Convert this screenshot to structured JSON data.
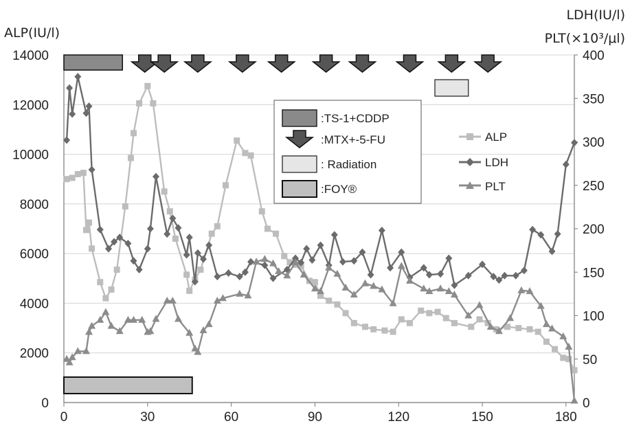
{
  "chart_data": {
    "type": "line",
    "title": "",
    "xlabel": "",
    "y_left_label": "ALP(IU/l)",
    "y_right_label_line1": "LDH(IU/l)",
    "y_right_label_line2": "PLT(×10³/μl)",
    "xlim": [
      0,
      183
    ],
    "ylim_left": [
      0,
      14000
    ],
    "ylim_right": [
      0,
      400
    ],
    "x_ticks": [
      0,
      30,
      60,
      90,
      120,
      150,
      180
    ],
    "y_left_ticks": [
      0,
      2000,
      4000,
      6000,
      8000,
      10000,
      12000,
      14000
    ],
    "y_right_ticks": [
      0,
      50,
      100,
      150,
      200,
      250,
      300,
      350,
      400
    ],
    "grid": "horizontal",
    "colors": {
      "ALP": "#bdbdbd",
      "LDH": "#6b6b6b",
      "PLT": "#8c8c8c"
    },
    "series": [
      {
        "name": "ALP",
        "axis": "left",
        "marker": "square",
        "points": [
          [
            1,
            9000
          ],
          [
            3,
            9050
          ],
          [
            5,
            9200
          ],
          [
            7,
            9250
          ],
          [
            8,
            6950
          ],
          [
            9,
            7250
          ],
          [
            10,
            6200
          ],
          [
            13,
            4850
          ],
          [
            15,
            4200
          ],
          [
            17,
            4550
          ],
          [
            19,
            5350
          ],
          [
            22,
            7900
          ],
          [
            24,
            9850
          ],
          [
            25,
            10850
          ],
          [
            27,
            12050
          ],
          [
            30,
            12750
          ],
          [
            32,
            12050
          ],
          [
            36,
            8500
          ],
          [
            38,
            7700
          ],
          [
            40,
            6600
          ],
          [
            44,
            5150
          ],
          [
            45,
            4500
          ],
          [
            47,
            4950
          ],
          [
            49,
            5350
          ],
          [
            53,
            6800
          ],
          [
            55,
            7100
          ],
          [
            58,
            8750
          ],
          [
            62,
            10550
          ],
          [
            65,
            10050
          ],
          [
            67,
            9950
          ],
          [
            71,
            7700
          ],
          [
            73,
            7000
          ],
          [
            76,
            6800
          ],
          [
            79,
            5900
          ],
          [
            81,
            5650
          ],
          [
            83,
            5550
          ],
          [
            85,
            5500
          ],
          [
            88,
            4900
          ],
          [
            90,
            4850
          ],
          [
            92,
            4300
          ],
          [
            95,
            4100
          ],
          [
            98,
            3950
          ],
          [
            101,
            3600
          ],
          [
            104,
            3200
          ],
          [
            108,
            3050
          ],
          [
            111,
            2950
          ],
          [
            115,
            2900
          ],
          [
            118,
            2850
          ],
          [
            121,
            3350
          ],
          [
            124,
            3200
          ],
          [
            128,
            3700
          ],
          [
            131,
            3600
          ],
          [
            134,
            3650
          ],
          [
            137,
            3400
          ],
          [
            140,
            3200
          ],
          [
            146,
            3050
          ],
          [
            149,
            3350
          ],
          [
            152,
            3200
          ],
          [
            155,
            2950
          ],
          [
            159,
            3050
          ],
          [
            163,
            3000
          ],
          [
            167,
            2950
          ],
          [
            170,
            2850
          ],
          [
            173,
            2450
          ],
          [
            176,
            2150
          ],
          [
            179,
            1800
          ],
          [
            181,
            1750
          ],
          [
            183,
            1300
          ]
        ]
      },
      {
        "name": "LDH",
        "axis": "right",
        "marker": "diamond",
        "points": [
          [
            1,
            302
          ],
          [
            2,
            362
          ],
          [
            3,
            332
          ],
          [
            5,
            375
          ],
          [
            8,
            333
          ],
          [
            9,
            341
          ],
          [
            10,
            268
          ],
          [
            13,
            199
          ],
          [
            16,
            177
          ],
          [
            18,
            185
          ],
          [
            20,
            190
          ],
          [
            23,
            183
          ],
          [
            25,
            163
          ],
          [
            27,
            153
          ],
          [
            30,
            177
          ],
          [
            31,
            200
          ],
          [
            33,
            260
          ],
          [
            37,
            194
          ],
          [
            39,
            212
          ],
          [
            41,
            201
          ],
          [
            44,
            170
          ],
          [
            45,
            190
          ],
          [
            47,
            139
          ],
          [
            48,
            172
          ],
          [
            50,
            165
          ],
          [
            52,
            181
          ],
          [
            55,
            145
          ],
          [
            59,
            149
          ],
          [
            63,
            145
          ],
          [
            65,
            150
          ],
          [
            67,
            162
          ],
          [
            72,
            158
          ],
          [
            75,
            143
          ],
          [
            80,
            153
          ],
          [
            83,
            166
          ],
          [
            85,
            161
          ],
          [
            87,
            177
          ],
          [
            89,
            164
          ],
          [
            92,
            181
          ],
          [
            95,
            158
          ],
          [
            97,
            193
          ],
          [
            100,
            162
          ],
          [
            104,
            163
          ],
          [
            107,
            173
          ],
          [
            110,
            147
          ],
          [
            114,
            198
          ],
          [
            117,
            155
          ],
          [
            121,
            173
          ],
          [
            124,
            144
          ],
          [
            129,
            155
          ],
          [
            131,
            147
          ],
          [
            135,
            148
          ],
          [
            138,
            166
          ],
          [
            140,
            135
          ],
          [
            145,
            146
          ],
          [
            150,
            159
          ],
          [
            154,
            145
          ],
          [
            156,
            141
          ],
          [
            158,
            146
          ],
          [
            162,
            146
          ],
          [
            165,
            152
          ],
          [
            168,
            199
          ],
          [
            171,
            193
          ],
          [
            175,
            174
          ],
          [
            177,
            194
          ],
          [
            180,
            274
          ],
          [
            183,
            299
          ]
        ]
      },
      {
        "name": "PLT",
        "axis": "right",
        "marker": "triangle",
        "points": [
          [
            1,
            50
          ],
          [
            2,
            46
          ],
          [
            3,
            52
          ],
          [
            5,
            59
          ],
          [
            8,
            59
          ],
          [
            9,
            81
          ],
          [
            10,
            88
          ],
          [
            13,
            95
          ],
          [
            15,
            104
          ],
          [
            17,
            88
          ],
          [
            20,
            82
          ],
          [
            23,
            95
          ],
          [
            25,
            95
          ],
          [
            28,
            95
          ],
          [
            30,
            81
          ],
          [
            31,
            82
          ],
          [
            33,
            96
          ],
          [
            37,
            117
          ],
          [
            39,
            117
          ],
          [
            41,
            96
          ],
          [
            45,
            80
          ],
          [
            47,
            62
          ],
          [
            48,
            58
          ],
          [
            50,
            83
          ],
          [
            52,
            90
          ],
          [
            55,
            117
          ],
          [
            57,
            120
          ],
          [
            63,
            125
          ],
          [
            66,
            123
          ],
          [
            69,
            162
          ],
          [
            72,
            165
          ],
          [
            75,
            160
          ],
          [
            77,
            151
          ],
          [
            80,
            146
          ],
          [
            83,
            161
          ],
          [
            86,
            147
          ],
          [
            90,
            131
          ],
          [
            92,
            128
          ],
          [
            95,
            155
          ],
          [
            98,
            148
          ],
          [
            101,
            132
          ],
          [
            104,
            124
          ],
          [
            108,
            137
          ],
          [
            111,
            134
          ],
          [
            114,
            130
          ],
          [
            118,
            114
          ],
          [
            121,
            157
          ],
          [
            124,
            140
          ],
          [
            129,
            131
          ],
          [
            131,
            128
          ],
          [
            135,
            131
          ],
          [
            138,
            128
          ],
          [
            140,
            124
          ],
          [
            145,
            100
          ],
          [
            149,
            112
          ],
          [
            153,
            87
          ],
          [
            156,
            82
          ],
          [
            160,
            97
          ],
          [
            164,
            129
          ],
          [
            167,
            128
          ],
          [
            171,
            111
          ],
          [
            173,
            90
          ],
          [
            175,
            85
          ],
          [
            179,
            76
          ],
          [
            181,
            64
          ],
          [
            183,
            2
          ]
        ]
      }
    ],
    "treatments": [
      {
        "name": "TS-1+CDDP",
        "type": "bar",
        "start": 0,
        "end": 21,
        "row": "top",
        "fill": "#8a8a8a"
      },
      {
        "name": "MTX+-5-FU",
        "type": "arrows",
        "at": [
          29,
          36,
          48,
          64,
          78,
          94,
          107,
          124,
          139,
          152
        ]
      },
      {
        "name": "Radiation",
        "type": "bar",
        "start": 133,
        "end": 145,
        "row": "upper",
        "fill": "#e6e6e6"
      },
      {
        "name": "FOY®",
        "type": "bar",
        "start": 0,
        "end": 46,
        "row": "bottom",
        "fill": "#c0c0c0"
      }
    ],
    "legend_box": {
      "items": [
        {
          "label": ":TS-1+CDDP",
          "swatch": "bar-dark"
        },
        {
          "label": ":MTX+-5-FU",
          "swatch": "arrow"
        },
        {
          "label": ": Radiation",
          "swatch": "bar-light"
        },
        {
          "label": ":FOY®",
          "swatch": "bar-mid"
        }
      ]
    },
    "series_legend": [
      {
        "label": "ALP",
        "marker": "square"
      },
      {
        "label": "LDH",
        "marker": "diamond"
      },
      {
        "label": "PLT",
        "marker": "triangle"
      }
    ]
  }
}
